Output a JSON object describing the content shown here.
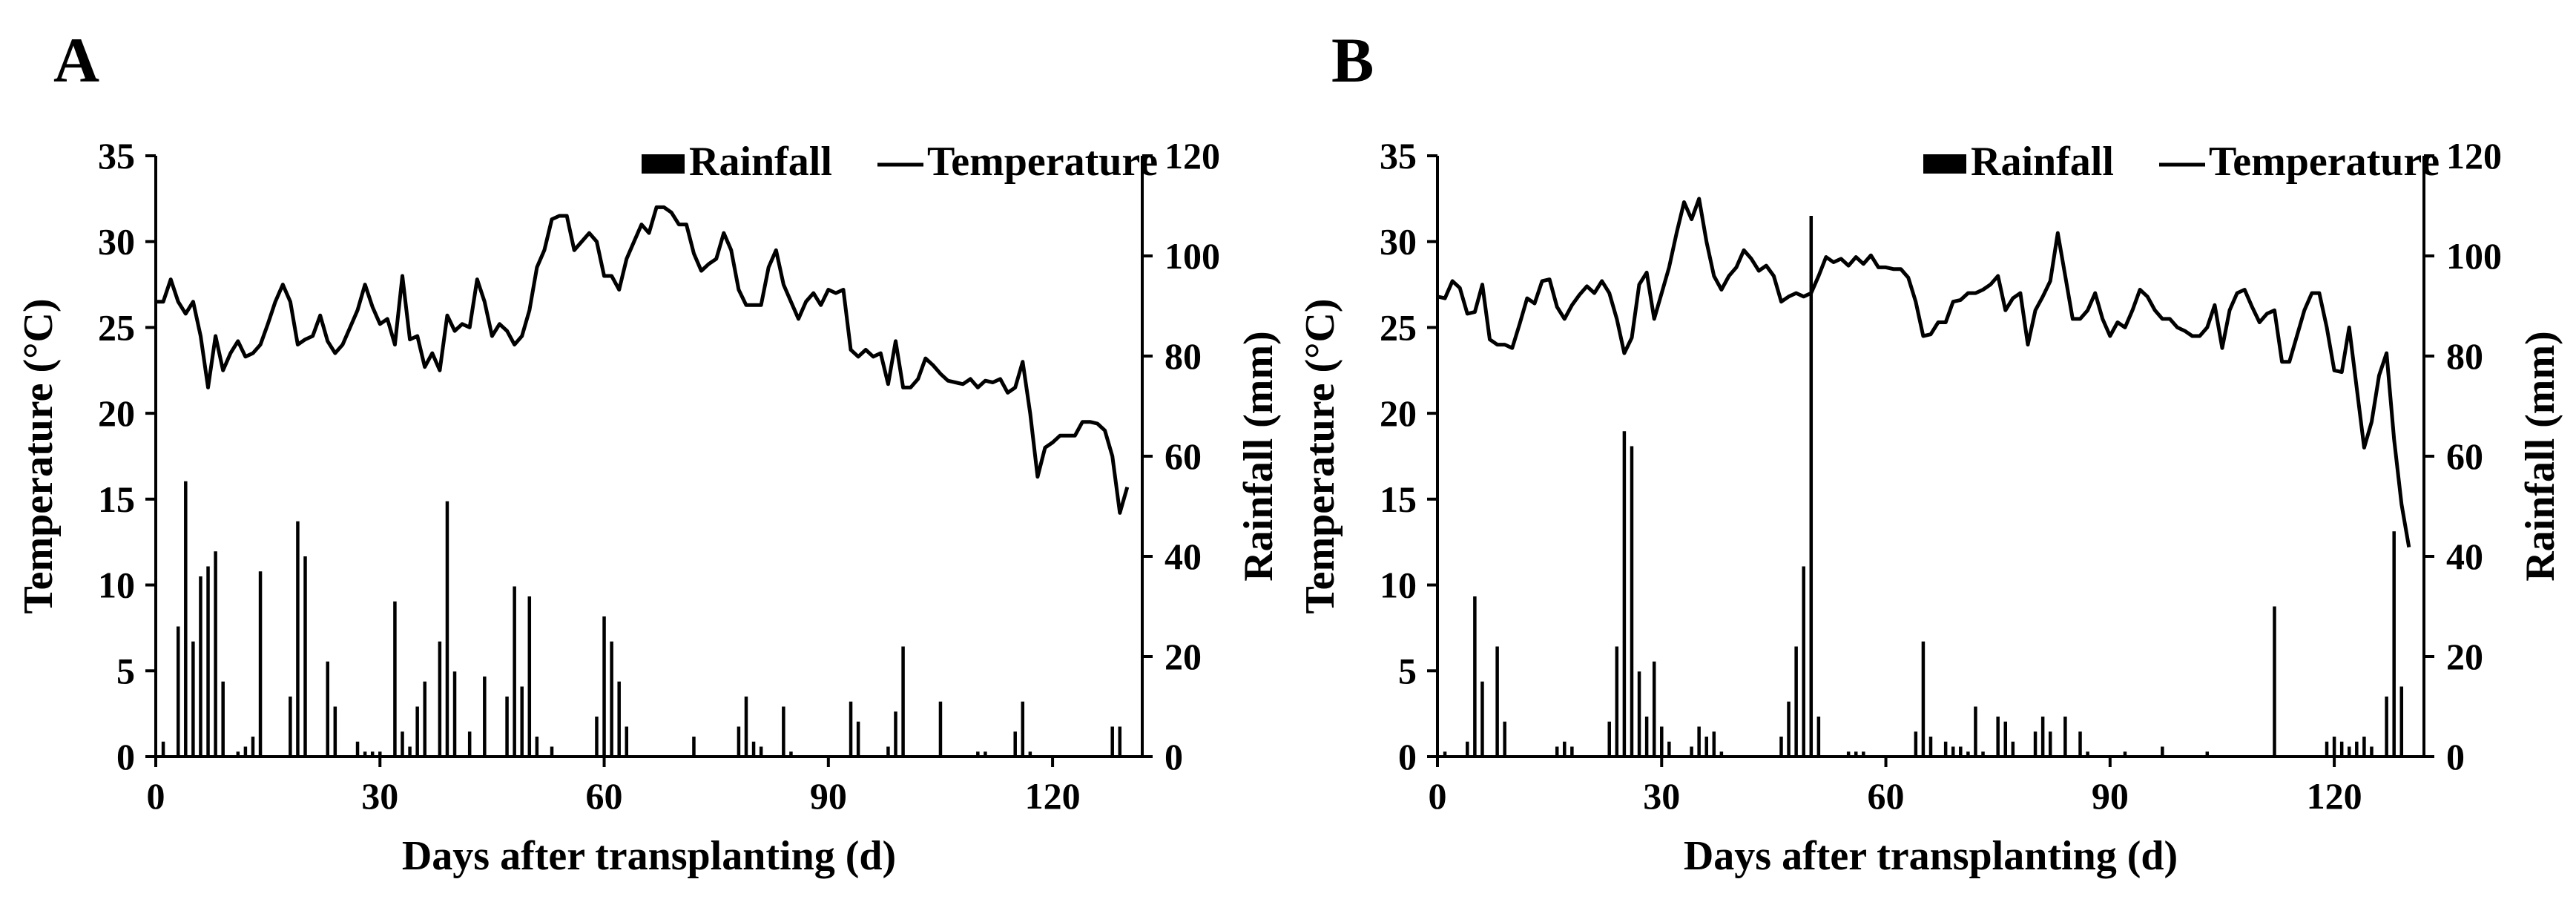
{
  "chart_data": [
    {
      "panel": "A",
      "type": "bar+line",
      "xlabel": "Days after transplanting (d)",
      "ylabel": "Temperature (°C)",
      "y2label": "Rainfall (mm)",
      "xlim": [
        0,
        132
      ],
      "ylim": [
        0,
        35
      ],
      "y2lim": [
        0,
        120
      ],
      "xticks": [
        0,
        30,
        60,
        90,
        120
      ],
      "yticks": [
        0,
        5,
        10,
        15,
        20,
        25,
        30,
        35
      ],
      "y2ticks": [
        0,
        20,
        40,
        60,
        80,
        100,
        120
      ],
      "legend_position": "top-right",
      "series": [
        {
          "name": "Rainfall",
          "kind": "bar",
          "axis": "right",
          "x": [
            1,
            3,
            4,
            5,
            6,
            7,
            8,
            9,
            11,
            12,
            13,
            14,
            18,
            19,
            20,
            23,
            24,
            27,
            28,
            29,
            30,
            32,
            33,
            34,
            35,
            36,
            38,
            39,
            40,
            42,
            44,
            47,
            48,
            49,
            50,
            51,
            53,
            59,
            60,
            61,
            62,
            63,
            72,
            78,
            79,
            80,
            81,
            84,
            85,
            93,
            94,
            98,
            99,
            100,
            105,
            110,
            111,
            115,
            116,
            117,
            128,
            129
          ],
          "values": [
            3,
            26,
            55,
            23,
            36,
            38,
            41,
            15,
            1,
            2,
            4,
            37,
            12,
            47,
            40,
            19,
            10,
            3,
            1,
            1,
            1,
            31,
            5,
            2,
            10,
            15,
            23,
            51,
            17,
            5,
            16,
            12,
            34,
            14,
            32,
            4,
            2,
            8,
            28,
            23,
            15,
            6,
            4,
            6,
            12,
            3,
            2,
            10,
            1,
            11,
            7,
            2,
            9,
            22,
            11,
            1,
            1,
            5,
            11,
            1,
            6,
            6
          ]
        },
        {
          "name": "Temperature",
          "kind": "line",
          "axis": "left",
          "x": [
            0,
            1,
            2,
            3,
            4,
            5,
            6,
            7,
            8,
            9,
            10,
            11,
            12,
            13,
            14,
            15,
            16,
            17,
            18,
            19,
            20,
            21,
            22,
            23,
            24,
            25,
            26,
            27,
            28,
            29,
            30,
            31,
            32,
            33,
            34,
            35,
            36,
            37,
            38,
            39,
            40,
            41,
            42,
            43,
            44,
            45,
            46,
            47,
            48,
            49,
            50,
            51,
            52,
            53,
            54,
            55,
            56,
            57,
            58,
            59,
            60,
            61,
            62,
            63,
            64,
            65,
            66,
            67,
            68,
            69,
            70,
            71,
            72,
            73,
            74,
            75,
            76,
            77,
            78,
            79,
            80,
            81,
            82,
            83,
            84,
            85,
            86,
            87,
            88,
            89,
            90,
            91,
            92,
            93,
            94,
            95,
            96,
            97,
            98,
            99,
            100,
            101,
            102,
            103,
            104,
            105,
            106,
            107,
            108,
            109,
            110,
            111,
            112,
            113,
            114,
            115,
            116,
            117,
            118,
            119,
            120,
            121,
            122,
            123,
            124,
            125,
            126,
            127,
            128,
            129,
            130
          ],
          "values": [
            26.5,
            26.5,
            27.8,
            26.5,
            25.8,
            26.5,
            24.5,
            21.5,
            24.5,
            22.5,
            23.5,
            24.2,
            23.3,
            23.5,
            24.0,
            25.2,
            26.5,
            27.5,
            26.5,
            24.0,
            24.3,
            24.5,
            25.7,
            24.2,
            23.5,
            24.0,
            25.0,
            26.0,
            27.5,
            26.2,
            25.2,
            25.5,
            24.0,
            28.0,
            24.3,
            24.5,
            22.7,
            23.5,
            22.5,
            25.7,
            24.8,
            25.2,
            25.0,
            27.8,
            26.5,
            24.5,
            25.2,
            24.8,
            24.0,
            24.5,
            26.0,
            28.5,
            29.5,
            31.3,
            31.5,
            31.5,
            29.5,
            30.0,
            30.5,
            30.0,
            28.0,
            28.0,
            27.2,
            29.0,
            30.0,
            31.0,
            30.5,
            32.0,
            32.0,
            31.7,
            31.0,
            31.0,
            29.3,
            28.3,
            28.7,
            29.0,
            30.5,
            29.5,
            27.2,
            26.3,
            26.3,
            26.3,
            28.5,
            29.5,
            27.5,
            26.5,
            25.5,
            26.5,
            27.0,
            26.3,
            27.2,
            27.0,
            27.2,
            23.7,
            23.3,
            23.7,
            23.3,
            23.5,
            21.7,
            24.2,
            21.5,
            21.5,
            22.0,
            23.2,
            22.8,
            22.3,
            21.9,
            21.8,
            21.7,
            22.0,
            21.5,
            21.9,
            21.8,
            22.0,
            21.2,
            21.5,
            23.0,
            20.0,
            16.3,
            18.0,
            18.3,
            18.7,
            18.7,
            18.7,
            19.5,
            19.5,
            19.4,
            19.0,
            17.5,
            14.2,
            15.7
          ]
        }
      ]
    },
    {
      "panel": "B",
      "type": "bar+line",
      "xlabel": "Days after transplanting (d)",
      "ylabel": "Temperature (°C)",
      "y2label": "Rainfall (mm)",
      "xlim": [
        0,
        132
      ],
      "ylim": [
        0,
        35
      ],
      "y2lim": [
        0,
        120
      ],
      "xticks": [
        0,
        30,
        60,
        90,
        120
      ],
      "yticks": [
        0,
        5,
        10,
        15,
        20,
        25,
        30,
        35
      ],
      "y2ticks": [
        0,
        20,
        40,
        60,
        80,
        100,
        120
      ],
      "legend_position": "top-right",
      "series": [
        {
          "name": "Rainfall",
          "kind": "bar",
          "axis": "right",
          "x": [
            1,
            4,
            5,
            6,
            8,
            9,
            16,
            17,
            18,
            23,
            24,
            25,
            26,
            27,
            28,
            29,
            30,
            31,
            34,
            35,
            36,
            37,
            38,
            46,
            47,
            48,
            49,
            50,
            51,
            55,
            56,
            57,
            64,
            65,
            66,
            68,
            69,
            70,
            71,
            72,
            73,
            75,
            76,
            77,
            80,
            81,
            82,
            84,
            86,
            87,
            92,
            97,
            103,
            112,
            119,
            120,
            121,
            122,
            123,
            124,
            125,
            127,
            128,
            129
          ],
          "values": [
            1,
            3,
            32,
            15,
            22,
            7,
            2,
            3,
            2,
            7,
            22,
            65,
            62,
            17,
            8,
            19,
            6,
            3,
            2,
            6,
            4,
            5,
            1,
            4,
            11,
            22,
            38,
            108,
            8,
            1,
            1,
            1,
            5,
            23,
            4,
            3,
            2,
            2,
            1,
            10,
            1,
            8,
            7,
            3,
            5,
            8,
            5,
            8,
            5,
            1,
            1,
            2,
            1,
            30,
            3,
            4,
            3,
            2,
            3,
            4,
            2,
            12,
            45,
            14
          ]
        },
        {
          "name": "Temperature",
          "kind": "line",
          "axis": "left",
          "x": [
            0,
            1,
            2,
            3,
            4,
            5,
            6,
            7,
            8,
            9,
            10,
            11,
            12,
            13,
            14,
            15,
            16,
            17,
            18,
            19,
            20,
            21,
            22,
            23,
            24,
            25,
            26,
            27,
            28,
            29,
            30,
            31,
            32,
            33,
            34,
            35,
            36,
            37,
            38,
            39,
            40,
            41,
            42,
            43,
            44,
            45,
            46,
            47,
            48,
            49,
            50,
            51,
            52,
            53,
            54,
            55,
            56,
            57,
            58,
            59,
            60,
            61,
            62,
            63,
            64,
            65,
            66,
            67,
            68,
            69,
            70,
            71,
            72,
            73,
            74,
            75,
            76,
            77,
            78,
            79,
            80,
            81,
            82,
            83,
            84,
            85,
            86,
            87,
            88,
            89,
            90,
            91,
            92,
            93,
            94,
            95,
            96,
            97,
            98,
            99,
            100,
            101,
            102,
            103,
            104,
            105,
            106,
            107,
            108,
            109,
            110,
            111,
            112,
            113,
            114,
            115,
            116,
            117,
            118,
            119,
            120,
            121,
            122,
            123,
            124,
            125,
            126,
            127,
            128,
            129,
            130
          ],
          "values": [
            26.8,
            26.7,
            27.7,
            27.3,
            25.8,
            25.9,
            27.5,
            24.3,
            24.0,
            24.0,
            23.8,
            25.2,
            26.7,
            26.4,
            27.7,
            27.8,
            26.2,
            25.5,
            26.3,
            26.9,
            27.4,
            27.0,
            27.7,
            27.0,
            25.5,
            23.5,
            24.4,
            27.5,
            28.2,
            25.5,
            27.0,
            28.5,
            30.5,
            32.3,
            31.3,
            32.5,
            30.0,
            28.0,
            27.2,
            28.0,
            28.5,
            29.5,
            29.0,
            28.3,
            28.6,
            28.0,
            26.5,
            26.8,
            27.0,
            26.8,
            27.0,
            28.0,
            29.1,
            28.8,
            29.0,
            28.6,
            29.1,
            28.7,
            29.2,
            28.5,
            28.5,
            28.4,
            28.4,
            27.9,
            26.5,
            24.5,
            24.6,
            25.3,
            25.3,
            26.5,
            26.6,
            27.0,
            27.0,
            27.2,
            27.5,
            28.0,
            26.0,
            26.7,
            27.0,
            24.0,
            26.0,
            26.8,
            27.7,
            30.5,
            28.0,
            25.5,
            25.5,
            26.0,
            27.0,
            25.5,
            24.5,
            25.3,
            25.0,
            26.0,
            27.2,
            26.8,
            26.0,
            25.5,
            25.5,
            25.0,
            24.8,
            24.5,
            24.5,
            25.0,
            26.3,
            23.8,
            26.0,
            27.0,
            27.2,
            26.2,
            25.3,
            25.8,
            26.0,
            23.0,
            23.0,
            24.5,
            26.0,
            27.0,
            27.0,
            25.0,
            22.5,
            22.4,
            25.0,
            21.5,
            18.0,
            19.5,
            22.2,
            23.5,
            18.5,
            14.7,
            12.2
          ]
        }
      ]
    }
  ]
}
